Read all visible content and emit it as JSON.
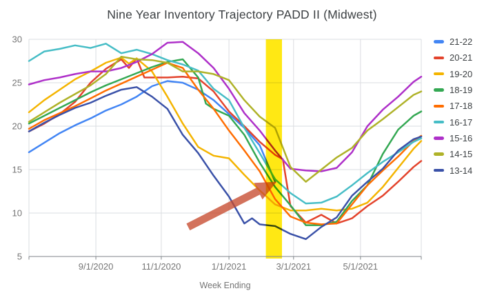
{
  "title": "Nine Year Inventory Trajectory PADD II (Midwest)",
  "x_axis": {
    "label": "Week Ending",
    "ticks": [
      {
        "label": "9/1/2020",
        "week": 8.7
      },
      {
        "label": "11/1/2020",
        "week": 17.2
      },
      {
        "label": "1/1/2021",
        "week": 26.0
      },
      {
        "label": "3/1/2021",
        "week": 34.4
      },
      {
        "label": "5/1/2021",
        "week": 43.1
      }
    ],
    "week_range": [
      0,
      51
    ],
    "week_zero_date": "7/3/2020"
  },
  "y_axis": {
    "ticks": [
      30,
      25,
      20,
      15,
      10,
      5
    ],
    "min": 5,
    "max": 30
  },
  "legend": [
    {
      "label": "21-22",
      "color": "#4285F4"
    },
    {
      "label": "20-21",
      "color": "#E3432C"
    },
    {
      "label": "19-20",
      "color": "#F4B400"
    },
    {
      "label": "18-19",
      "color": "#34A853"
    },
    {
      "label": "17-18",
      "color": "#FF6D01"
    },
    {
      "label": "16-17",
      "color": "#46BDC6"
    },
    {
      "label": "15-16",
      "color": "#AE30C9"
    },
    {
      "label": "14-15",
      "color": "#AFB228"
    },
    {
      "label": "13-14",
      "color": "#3A51A8"
    }
  ],
  "chart_data": {
    "type": "line",
    "title": "Nine Year Inventory Trajectory PADD II (Midwest)",
    "xlabel": "Week Ending",
    "ylabel": "",
    "ylim": [
      5,
      30
    ],
    "grid": true,
    "legend_position": "right",
    "x_unit": "weeks since 7/3/2020 (weekly data, aligned by season)",
    "series": [
      {
        "name": "21-22",
        "color": "#4285F4",
        "points": [
          [
            0,
            17.0
          ],
          [
            2,
            18.1
          ],
          [
            4,
            19.2
          ],
          [
            6,
            20.1
          ],
          [
            8,
            20.9
          ],
          [
            10,
            21.8
          ],
          [
            12,
            22.5
          ],
          [
            14,
            23.4
          ],
          [
            16,
            24.6
          ],
          [
            18,
            25.2
          ],
          [
            20,
            25.0
          ],
          [
            22,
            24.2
          ],
          [
            24,
            23.0
          ],
          [
            26,
            21.4
          ],
          [
            28,
            19.8
          ],
          [
            30,
            17.8
          ],
          [
            32,
            13.6
          ]
        ]
      },
      {
        "name": "20-21",
        "color": "#E3432C",
        "points": [
          [
            0,
            19.4
          ],
          [
            2,
            20.3
          ],
          [
            4,
            21.4
          ],
          [
            6,
            22.8
          ],
          [
            8,
            25.0
          ],
          [
            10,
            26.6
          ],
          [
            12,
            27.7
          ],
          [
            13,
            26.7
          ],
          [
            14,
            27.8
          ],
          [
            15,
            25.6
          ],
          [
            16,
            25.6
          ],
          [
            18,
            25.6
          ],
          [
            20,
            25.7
          ],
          [
            22,
            25.5
          ],
          [
            24,
            24.0
          ],
          [
            26,
            21.7
          ],
          [
            28,
            20.0
          ],
          [
            30,
            18.2
          ],
          [
            32,
            16.7
          ],
          [
            33,
            16.2
          ],
          [
            34,
            10.8
          ],
          [
            36,
            8.9
          ],
          [
            38,
            9.8
          ],
          [
            40,
            8.8
          ],
          [
            42,
            9.4
          ],
          [
            44,
            10.8
          ],
          [
            46,
            12.0
          ],
          [
            48,
            13.6
          ],
          [
            50,
            15.3
          ],
          [
            51,
            16.0
          ]
        ]
      },
      {
        "name": "19-20",
        "color": "#F4B400",
        "points": [
          [
            0,
            21.6
          ],
          [
            2,
            23.0
          ],
          [
            4,
            24.2
          ],
          [
            6,
            25.4
          ],
          [
            8,
            26.3
          ],
          [
            10,
            27.3
          ],
          [
            12,
            27.9
          ],
          [
            13,
            27.2
          ],
          [
            14,
            27.8
          ],
          [
            16,
            26.3
          ],
          [
            18,
            23.4
          ],
          [
            20,
            20.3
          ],
          [
            22,
            17.6
          ],
          [
            24,
            16.6
          ],
          [
            26,
            16.3
          ],
          [
            28,
            14.4
          ],
          [
            30,
            12.6
          ],
          [
            32,
            11.0
          ],
          [
            34,
            10.3
          ],
          [
            36,
            10.3
          ],
          [
            38,
            10.5
          ],
          [
            40,
            10.3
          ],
          [
            42,
            10.5
          ],
          [
            44,
            11.2
          ],
          [
            46,
            13.0
          ],
          [
            48,
            15.2
          ],
          [
            50,
            17.4
          ],
          [
            51,
            18.3
          ]
        ]
      },
      {
        "name": "18-19",
        "color": "#34A853",
        "points": [
          [
            0,
            20.3
          ],
          [
            2,
            21.2
          ],
          [
            4,
            22.1
          ],
          [
            6,
            23.0
          ],
          [
            8,
            23.9
          ],
          [
            10,
            24.7
          ],
          [
            12,
            25.4
          ],
          [
            14,
            26.1
          ],
          [
            16,
            26.8
          ],
          [
            18,
            27.4
          ],
          [
            20,
            27.7
          ],
          [
            22,
            25.6
          ],
          [
            23,
            22.6
          ],
          [
            24,
            22.0
          ],
          [
            26,
            21.2
          ],
          [
            28,
            19.0
          ],
          [
            30,
            15.8
          ],
          [
            32,
            13.0
          ],
          [
            34,
            10.9
          ],
          [
            36,
            8.6
          ],
          [
            38,
            8.6
          ],
          [
            40,
            9.0
          ],
          [
            42,
            11.4
          ],
          [
            44,
            13.2
          ],
          [
            46,
            16.8
          ],
          [
            48,
            19.6
          ],
          [
            50,
            21.2
          ],
          [
            51,
            21.7
          ]
        ]
      },
      {
        "name": "17-18",
        "color": "#FF6D01",
        "points": [
          [
            0,
            19.7
          ],
          [
            2,
            20.7
          ],
          [
            4,
            21.5
          ],
          [
            6,
            22.3
          ],
          [
            8,
            23.2
          ],
          [
            10,
            24.1
          ],
          [
            12,
            24.9
          ],
          [
            14,
            25.7
          ],
          [
            16,
            26.5
          ],
          [
            18,
            27.3
          ],
          [
            20,
            26.7
          ],
          [
            22,
            24.2
          ],
          [
            24,
            22.0
          ],
          [
            26,
            19.5
          ],
          [
            28,
            17.2
          ],
          [
            30,
            14.8
          ],
          [
            32,
            11.6
          ],
          [
            34,
            9.6
          ],
          [
            36,
            8.9
          ],
          [
            38,
            8.7
          ],
          [
            40,
            8.8
          ],
          [
            42,
            11.0
          ],
          [
            44,
            13.2
          ],
          [
            46,
            14.9
          ],
          [
            48,
            16.5
          ],
          [
            50,
            18.3
          ],
          [
            51,
            18.9
          ]
        ]
      },
      {
        "name": "16-17",
        "color": "#46BDC6",
        "points": [
          [
            0,
            27.5
          ],
          [
            2,
            28.6
          ],
          [
            4,
            28.9
          ],
          [
            6,
            29.3
          ],
          [
            8,
            29.0
          ],
          [
            10,
            29.5
          ],
          [
            12,
            28.4
          ],
          [
            14,
            28.8
          ],
          [
            16,
            28.3
          ],
          [
            18,
            27.6
          ],
          [
            20,
            27.1
          ],
          [
            22,
            26.4
          ],
          [
            24,
            24.3
          ],
          [
            26,
            23.0
          ],
          [
            28,
            19.8
          ],
          [
            30,
            16.9
          ],
          [
            32,
            13.9
          ],
          [
            34,
            12.3
          ],
          [
            36,
            11.1
          ],
          [
            38,
            11.2
          ],
          [
            40,
            11.9
          ],
          [
            42,
            13.2
          ],
          [
            44,
            14.6
          ],
          [
            46,
            15.9
          ],
          [
            48,
            17.0
          ],
          [
            50,
            18.2
          ],
          [
            51,
            18.6
          ]
        ]
      },
      {
        "name": "15-16",
        "color": "#AE30C9",
        "points": [
          [
            0,
            24.8
          ],
          [
            2,
            25.3
          ],
          [
            4,
            25.6
          ],
          [
            6,
            26.0
          ],
          [
            8,
            26.3
          ],
          [
            10,
            26.3
          ],
          [
            12,
            26.7
          ],
          [
            14,
            27.4
          ],
          [
            16,
            28.3
          ],
          [
            18,
            29.6
          ],
          [
            20,
            29.7
          ],
          [
            22,
            28.4
          ],
          [
            24,
            26.7
          ],
          [
            26,
            24.3
          ],
          [
            28,
            21.5
          ],
          [
            30,
            19.5
          ],
          [
            32,
            17.2
          ],
          [
            34,
            15.1
          ],
          [
            36,
            14.9
          ],
          [
            38,
            14.8
          ],
          [
            40,
            15.2
          ],
          [
            42,
            17.0
          ],
          [
            44,
            20.0
          ],
          [
            46,
            21.9
          ],
          [
            48,
            23.4
          ],
          [
            50,
            25.1
          ],
          [
            51,
            25.7
          ]
        ]
      },
      {
        "name": "14-15",
        "color": "#AFB228",
        "points": [
          [
            0,
            20.5
          ],
          [
            2,
            21.6
          ],
          [
            4,
            22.7
          ],
          [
            6,
            23.7
          ],
          [
            8,
            24.7
          ],
          [
            10,
            26.0
          ],
          [
            12,
            28.0
          ],
          [
            14,
            27.7
          ],
          [
            16,
            27.6
          ],
          [
            18,
            27.3
          ],
          [
            20,
            26.3
          ],
          [
            22,
            26.3
          ],
          [
            24,
            26.0
          ],
          [
            26,
            25.3
          ],
          [
            28,
            23.0
          ],
          [
            30,
            21.1
          ],
          [
            32,
            19.8
          ],
          [
            34,
            15.3
          ],
          [
            36,
            13.6
          ],
          [
            38,
            15.0
          ],
          [
            40,
            16.4
          ],
          [
            42,
            17.5
          ],
          [
            44,
            19.5
          ],
          [
            46,
            20.8
          ],
          [
            48,
            22.2
          ],
          [
            50,
            23.6
          ],
          [
            51,
            24.0
          ]
        ]
      },
      {
        "name": "13-14",
        "color": "#3A51A8",
        "points": [
          [
            0,
            19.4
          ],
          [
            2,
            20.4
          ],
          [
            4,
            21.3
          ],
          [
            6,
            22.1
          ],
          [
            8,
            22.7
          ],
          [
            10,
            23.5
          ],
          [
            12,
            24.2
          ],
          [
            14,
            24.5
          ],
          [
            16,
            23.4
          ],
          [
            18,
            22.0
          ],
          [
            20,
            19.0
          ],
          [
            22,
            16.9
          ],
          [
            24,
            14.3
          ],
          [
            26,
            11.9
          ],
          [
            28,
            8.8
          ],
          [
            29,
            9.4
          ],
          [
            30,
            8.7
          ],
          [
            32,
            8.5
          ],
          [
            34,
            7.6
          ],
          [
            36,
            7.0
          ],
          [
            38,
            8.4
          ],
          [
            40,
            9.5
          ],
          [
            42,
            12.0
          ],
          [
            44,
            13.6
          ],
          [
            46,
            15.1
          ],
          [
            48,
            17.2
          ],
          [
            50,
            18.5
          ],
          [
            51,
            18.8
          ]
        ]
      }
    ],
    "highlight_band": {
      "week_from": 30.8,
      "week_to": 32.9,
      "color": "#FFE600"
    },
    "annotation_arrow": {
      "tail_week": 20.7,
      "tail_value": 8.4,
      "tip_week": 32.2,
      "tip_value": 13.6,
      "color": "#C74A2E"
    }
  }
}
